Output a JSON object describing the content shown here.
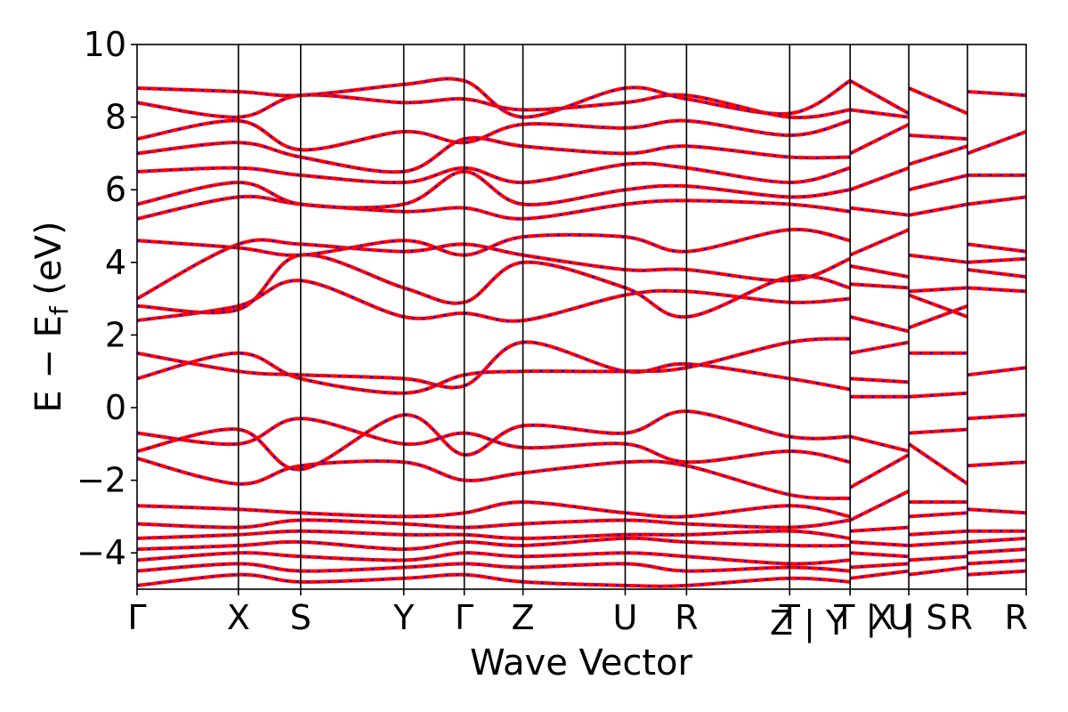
{
  "chart_data": {
    "type": "line",
    "xlabel": "Wave Vector",
    "ylabel_parts": [
      "E − E",
      "f",
      " (eV)"
    ],
    "ylim": [
      -5,
      10
    ],
    "y_ticks": [
      -4,
      -2,
      0,
      2,
      4,
      6,
      8,
      10
    ],
    "y_tick_labels": [
      "−4",
      "−2",
      "0",
      "2",
      "4",
      "6",
      "8",
      "10"
    ],
    "x_range": [
      0,
      1000
    ],
    "k_points": [
      {
        "label": "Γ",
        "x": 0
      },
      {
        "label": "X",
        "x": 114
      },
      {
        "label": "S",
        "x": 184
      },
      {
        "label": "Y",
        "x": 300
      },
      {
        "label": "Γ",
        "x": 368
      },
      {
        "label": "Z",
        "x": 434
      },
      {
        "label": "U",
        "x": 549
      },
      {
        "label": "R",
        "x": 618
      },
      {
        "label": "T",
        "x": 734
      },
      {
        "label": "Z | Y",
        "x": 802
      },
      {
        "label": "T | U",
        "x": 802
      },
      {
        "label": "X | S",
        "x": 868
      },
      {
        "label": "R",
        "x": 934
      },
      {
        "label": "R",
        "x": 1000
      }
    ],
    "vlines_x": [
      114,
      184,
      300,
      368,
      434,
      549,
      618,
      734,
      802,
      868,
      934
    ],
    "grid": false,
    "legend": "none",
    "series_colors": {
      "band": "#ff0000",
      "overlay_dash": "#0000ff"
    },
    "bands": [
      {
        "x": [
          0,
          114,
          184,
          300,
          368,
          434,
          549,
          618,
          734,
          802
        ],
        "y": [
          -4.9,
          -4.6,
          -4.8,
          -4.7,
          -4.6,
          -4.8,
          -4.9,
          -4.9,
          -4.7,
          -4.8
        ]
      },
      {
        "x": [
          0,
          114,
          184,
          300,
          368,
          434,
          549,
          618,
          734,
          802
        ],
        "y": [
          -4.5,
          -4.3,
          -4.5,
          -4.4,
          -4.3,
          -4.4,
          -4.3,
          -4.5,
          -4.4,
          -4.5
        ]
      },
      {
        "x": [
          0,
          114,
          184,
          300,
          368,
          434,
          549,
          618,
          734,
          802
        ],
        "y": [
          -4.2,
          -4.0,
          -4.1,
          -4.2,
          -4.0,
          -4.1,
          -4.0,
          -4.1,
          -4.3,
          -4.2
        ]
      },
      {
        "x": [
          0,
          114,
          184,
          300,
          368,
          434,
          549,
          618,
          734,
          802
        ],
        "y": [
          -3.9,
          -3.8,
          -3.7,
          -3.9,
          -3.7,
          -3.8,
          -3.6,
          -3.7,
          -3.8,
          -3.8
        ]
      },
      {
        "x": [
          0,
          114,
          184,
          300,
          368,
          434,
          549,
          618,
          734,
          802
        ],
        "y": [
          -3.6,
          -3.5,
          -3.4,
          -3.5,
          -3.5,
          -3.6,
          -3.5,
          -3.5,
          -3.4,
          -3.6
        ]
      },
      {
        "x": [
          0,
          114,
          184,
          300,
          368,
          434,
          549,
          618,
          734,
          802
        ],
        "y": [
          -3.2,
          -3.3,
          -3.1,
          -3.2,
          -3.3,
          -3.2,
          -3.1,
          -3.2,
          -3.3,
          -3.1
        ]
      },
      {
        "x": [
          0,
          114,
          184,
          300,
          368,
          434,
          549,
          618,
          734,
          802
        ],
        "y": [
          -2.7,
          -2.8,
          -2.9,
          -3.0,
          -2.9,
          -2.6,
          -2.9,
          -3.0,
          -2.7,
          -3.0
        ]
      },
      {
        "x": [
          0,
          114,
          184,
          300,
          368,
          434,
          549,
          618,
          734,
          802
        ],
        "y": [
          -1.4,
          -2.1,
          -1.6,
          -1.5,
          -2.0,
          -1.8,
          -1.5,
          -1.6,
          -2.4,
          -2.5
        ]
      },
      {
        "x": [
          0,
          114,
          184,
          300,
          368,
          434,
          549,
          618,
          734,
          802
        ],
        "y": [
          -0.7,
          -1.0,
          -0.3,
          -1.0,
          -0.7,
          -1.1,
          -1.0,
          -1.5,
          -1.2,
          -1.5
        ]
      },
      {
        "x": [
          0,
          114,
          184,
          300,
          368,
          434,
          549,
          618,
          734,
          802
        ],
        "y": [
          -1.2,
          -0.6,
          -1.7,
          -0.2,
          -1.3,
          -0.5,
          -0.7,
          -0.1,
          -0.8,
          -0.8
        ]
      },
      {
        "x": [
          0,
          114,
          184,
          300,
          368,
          434,
          549,
          618,
          734,
          802
        ],
        "y": [
          0.8,
          1.5,
          0.8,
          0.4,
          0.9,
          1.0,
          1.0,
          1.1,
          1.8,
          1.9
        ]
      },
      {
        "x": [
          0,
          114,
          184,
          300,
          368,
          434,
          549,
          618,
          734,
          802
        ],
        "y": [
          1.5,
          1.0,
          0.9,
          0.8,
          0.6,
          1.8,
          1.0,
          1.2,
          0.8,
          0.5
        ]
      },
      {
        "x": [
          0,
          114,
          184,
          300,
          368,
          434,
          549,
          618,
          734,
          802
        ],
        "y": [
          2.4,
          2.8,
          3.5,
          2.5,
          2.6,
          2.4,
          3.1,
          3.2,
          2.9,
          3.0
        ]
      },
      {
        "x": [
          0,
          114,
          184,
          300,
          368,
          434,
          549,
          618,
          734,
          802
        ],
        "y": [
          2.8,
          2.7,
          4.2,
          3.3,
          2.9,
          4.0,
          3.3,
          2.5,
          3.6,
          3.3
        ]
      },
      {
        "x": [
          0,
          114,
          184,
          300,
          368,
          434,
          549,
          618,
          734,
          802
        ],
        "y": [
          3.0,
          4.5,
          4.5,
          4.3,
          4.5,
          4.2,
          3.8,
          3.8,
          3.5,
          4.1
        ]
      },
      {
        "x": [
          0,
          114,
          184,
          300,
          368,
          434,
          549,
          618,
          734,
          802
        ],
        "y": [
          4.6,
          4.4,
          4.2,
          4.6,
          4.2,
          4.7,
          4.7,
          4.3,
          4.9,
          4.6
        ]
      },
      {
        "x": [
          0,
          114,
          184,
          300,
          368,
          434,
          549,
          618,
          734,
          802
        ],
        "y": [
          5.2,
          5.8,
          5.6,
          5.4,
          5.5,
          5.2,
          5.6,
          5.7,
          5.6,
          5.4
        ]
      },
      {
        "x": [
          0,
          114,
          184,
          300,
          368,
          434,
          549,
          618,
          734,
          802
        ],
        "y": [
          5.6,
          6.2,
          5.6,
          5.6,
          6.5,
          5.6,
          6.0,
          6.1,
          5.8,
          6.0
        ]
      },
      {
        "x": [
          0,
          114,
          184,
          300,
          368,
          434,
          549,
          618,
          734,
          802
        ],
        "y": [
          6.5,
          6.6,
          6.4,
          6.2,
          6.6,
          6.2,
          6.7,
          6.6,
          6.2,
          6.6
        ]
      },
      {
        "x": [
          0,
          114,
          184,
          300,
          368,
          434,
          549,
          618,
          734,
          802
        ],
        "y": [
          7.0,
          7.3,
          6.9,
          6.5,
          7.4,
          7.2,
          7.0,
          7.2,
          6.9,
          6.9
        ]
      },
      {
        "x": [
          0,
          114,
          184,
          300,
          368,
          434,
          549,
          618,
          734,
          802
        ],
        "y": [
          7.4,
          7.9,
          7.1,
          7.6,
          7.3,
          7.8,
          7.7,
          7.9,
          7.5,
          7.9
        ]
      },
      {
        "x": [
          0,
          114,
          184,
          300,
          368,
          434,
          549,
          618,
          734,
          802
        ],
        "y": [
          8.4,
          8.0,
          8.6,
          8.4,
          8.5,
          8.2,
          8.4,
          8.6,
          8.0,
          8.2
        ]
      },
      {
        "x": [
          0,
          114,
          184,
          300,
          368,
          434,
          549,
          618,
          734,
          802
        ],
        "y": [
          8.8,
          8.7,
          8.6,
          8.9,
          9.0,
          8.0,
          8.8,
          8.5,
          8.1,
          9.0
        ]
      },
      {
        "x": [
          802,
          868
        ],
        "y": [
          -4.7,
          -4.5
        ]
      },
      {
        "x": [
          802,
          868
        ],
        "y": [
          -4.4,
          -4.3
        ]
      },
      {
        "x": [
          802,
          868
        ],
        "y": [
          -4.0,
          -4.1
        ]
      },
      {
        "x": [
          802,
          868
        ],
        "y": [
          -3.7,
          -3.8
        ]
      },
      {
        "x": [
          802,
          868
        ],
        "y": [
          -3.4,
          -3.3
        ]
      },
      {
        "x": [
          802,
          868
        ],
        "y": [
          -3.1,
          -2.3
        ]
      },
      {
        "x": [
          802,
          868
        ],
        "y": [
          -2.2,
          -1.3
        ]
      },
      {
        "x": [
          802,
          868
        ],
        "y": [
          -0.8,
          -1.2
        ]
      },
      {
        "x": [
          802,
          868
        ],
        "y": [
          0.3,
          0.3
        ]
      },
      {
        "x": [
          802,
          868
        ],
        "y": [
          0.8,
          0.7
        ]
      },
      {
        "x": [
          802,
          868
        ],
        "y": [
          1.5,
          1.8
        ]
      },
      {
        "x": [
          802,
          868
        ],
        "y": [
          2.5,
          2.1
        ]
      },
      {
        "x": [
          802,
          868
        ],
        "y": [
          3.4,
          3.3
        ]
      },
      {
        "x": [
          802,
          868
        ],
        "y": [
          3.9,
          3.6
        ]
      },
      {
        "x": [
          802,
          868
        ],
        "y": [
          4.2,
          4.9
        ]
      },
      {
        "x": [
          802,
          868
        ],
        "y": [
          5.5,
          5.3
        ]
      },
      {
        "x": [
          802,
          868
        ],
        "y": [
          6.0,
          6.6
        ]
      },
      {
        "x": [
          802,
          868
        ],
        "y": [
          7.0,
          7.8
        ]
      },
      {
        "x": [
          802,
          868
        ],
        "y": [
          8.2,
          8.0
        ]
      },
      {
        "x": [
          802,
          868
        ],
        "y": [
          9.0,
          8.1
        ]
      },
      {
        "x": [
          868,
          934
        ],
        "y": [
          -4.6,
          -4.4
        ]
      },
      {
        "x": [
          868,
          934
        ],
        "y": [
          -4.2,
          -4.1
        ]
      },
      {
        "x": [
          868,
          934
        ],
        "y": [
          -3.8,
          -3.7
        ]
      },
      {
        "x": [
          868,
          934
        ],
        "y": [
          -3.5,
          -3.4
        ]
      },
      {
        "x": [
          868,
          934
        ],
        "y": [
          -3.0,
          -2.9
        ]
      },
      {
        "x": [
          868,
          934
        ],
        "y": [
          -2.6,
          -2.6
        ]
      },
      {
        "x": [
          868,
          934
        ],
        "y": [
          -1.0,
          -2.1
        ]
      },
      {
        "x": [
          868,
          934
        ],
        "y": [
          -0.7,
          -0.6
        ]
      },
      {
        "x": [
          868,
          934
        ],
        "y": [
          0.3,
          0.4
        ]
      },
      {
        "x": [
          868,
          934
        ],
        "y": [
          1.5,
          1.5
        ]
      },
      {
        "x": [
          868,
          934
        ],
        "y": [
          2.2,
          2.8
        ]
      },
      {
        "x": [
          868,
          934
        ],
        "y": [
          3.1,
          2.5
        ]
      },
      {
        "x": [
          868,
          934
        ],
        "y": [
          3.2,
          3.3
        ]
      },
      {
        "x": [
          868,
          934
        ],
        "y": [
          4.2,
          4.0
        ]
      },
      {
        "x": [
          868,
          934
        ],
        "y": [
          5.3,
          5.6
        ]
      },
      {
        "x": [
          868,
          934
        ],
        "y": [
          6.0,
          6.4
        ]
      },
      {
        "x": [
          868,
          934
        ],
        "y": [
          6.7,
          7.2
        ]
      },
      {
        "x": [
          868,
          934
        ],
        "y": [
          7.5,
          7.4
        ]
      },
      {
        "x": [
          868,
          934
        ],
        "y": [
          8.8,
          8.1
        ]
      },
      {
        "x": [
          934,
          1000
        ],
        "y": [
          -4.6,
          -4.5
        ]
      },
      {
        "x": [
          934,
          1000
        ],
        "y": [
          -4.3,
          -4.2
        ]
      },
      {
        "x": [
          934,
          1000
        ],
        "y": [
          -4.0,
          -3.9
        ]
      },
      {
        "x": [
          934,
          1000
        ],
        "y": [
          -3.7,
          -3.6
        ]
      },
      {
        "x": [
          934,
          1000
        ],
        "y": [
          -3.4,
          -3.4
        ]
      },
      {
        "x": [
          934,
          1000
        ],
        "y": [
          -2.8,
          -2.9
        ]
      },
      {
        "x": [
          934,
          1000
        ],
        "y": [
          -1.6,
          -1.5
        ]
      },
      {
        "x": [
          934,
          1000
        ],
        "y": [
          -0.3,
          -0.2
        ]
      },
      {
        "x": [
          934,
          1000
        ],
        "y": [
          0.9,
          1.1
        ]
      },
      {
        "x": [
          934,
          1000
        ],
        "y": [
          3.3,
          3.2
        ]
      },
      {
        "x": [
          934,
          1000
        ],
        "y": [
          3.8,
          3.6
        ]
      },
      {
        "x": [
          934,
          1000
        ],
        "y": [
          4.0,
          4.1
        ]
      },
      {
        "x": [
          934,
          1000
        ],
        "y": [
          4.5,
          4.3
        ]
      },
      {
        "x": [
          934,
          1000
        ],
        "y": [
          5.6,
          5.8
        ]
      },
      {
        "x": [
          934,
          1000
        ],
        "y": [
          6.4,
          6.4
        ]
      },
      {
        "x": [
          934,
          1000
        ],
        "y": [
          7.0,
          7.6
        ]
      },
      {
        "x": [
          934,
          1000
        ],
        "y": [
          8.7,
          8.6
        ]
      }
    ]
  }
}
